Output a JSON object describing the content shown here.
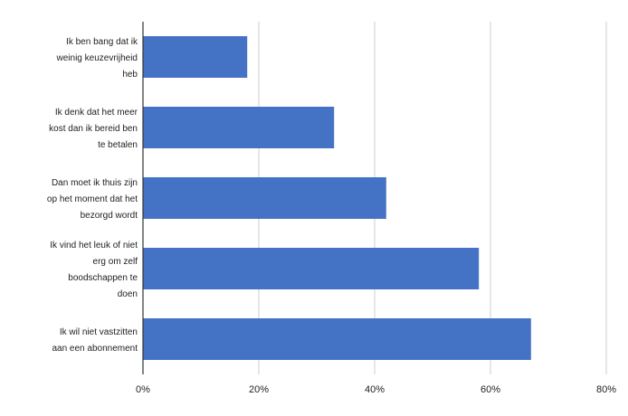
{
  "chart_data": {
    "type": "bar",
    "orientation": "horizontal",
    "categories": [
      [
        "Ik ben bang dat ik",
        "weinig keuzevrijheid",
        "heb"
      ],
      [
        "Ik denk dat het meer",
        "kost dan ik bereid ben",
        "te betalen"
      ],
      [
        "Dan moet ik thuis zijn",
        "op het moment dat het",
        "bezorgd wordt"
      ],
      [
        "Ik vind het leuk of niet",
        "erg om zelf",
        "boodschappen te",
        "doen"
      ],
      [
        "Ik wil niet vastzitten",
        "aan een abonnement"
      ]
    ],
    "values": [
      18,
      33,
      42,
      58,
      67
    ],
    "xlim": [
      0,
      80
    ],
    "xticks": [
      0,
      20,
      40,
      60,
      80
    ],
    "xtick_labels": [
      "0%",
      "20%",
      "40%",
      "60%",
      "80%"
    ],
    "grid": "vertical",
    "colors": {
      "bar": "#4472C4",
      "grid": "#cccccc",
      "axis": "#333333"
    }
  }
}
